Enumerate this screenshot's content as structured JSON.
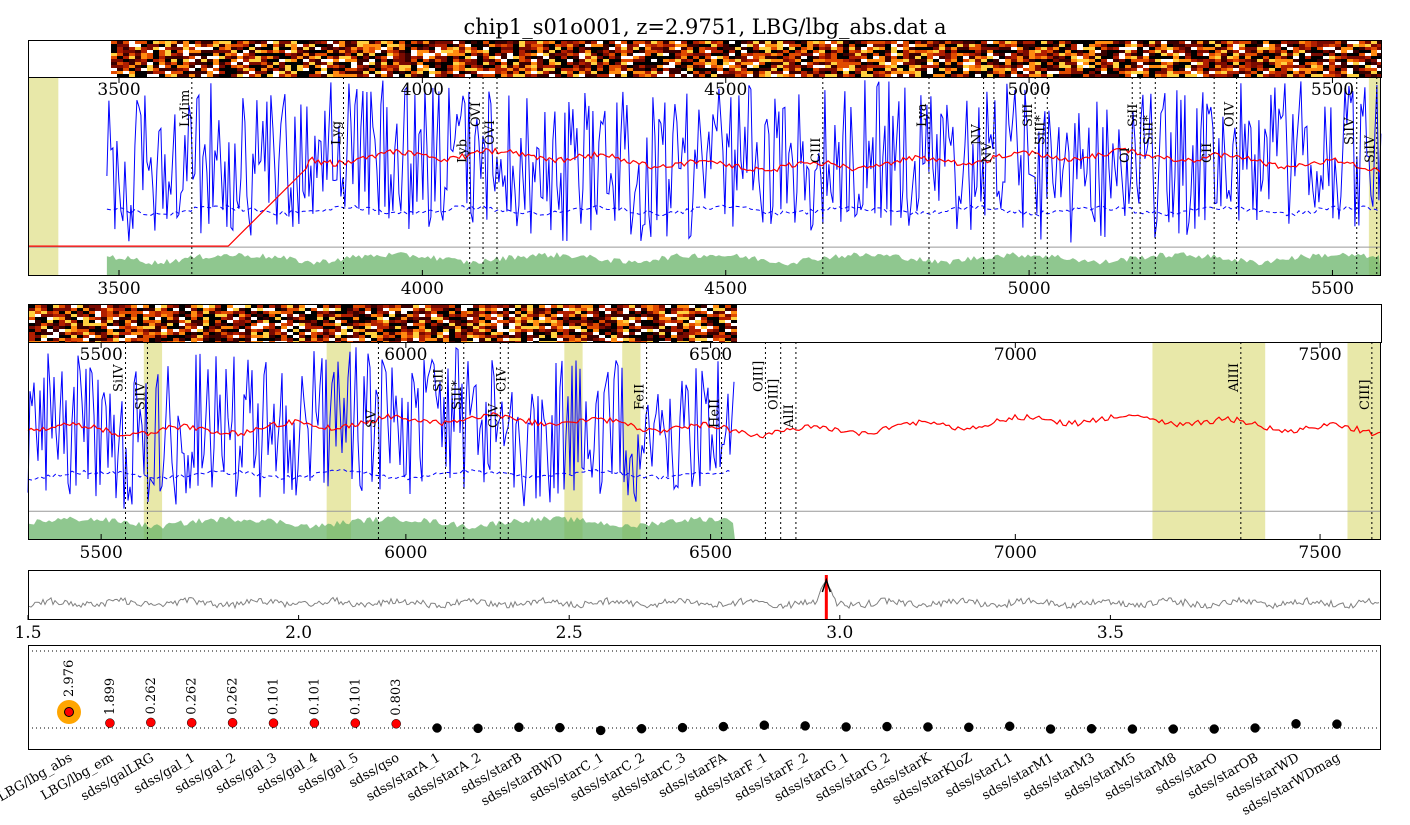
{
  "title": "chip1_s01o001, z=2.9751, LBG/lbg_abs.dat a",
  "colors": {
    "spectrum": "#0000ff",
    "template": "#ff0000",
    "sky": "#6ab46a",
    "mask": "#e6e6a0",
    "zero_line": "#999999",
    "marker": "#ff0000",
    "chi_line": "#808080"
  },
  "chart_data": [
    {
      "id": "spectrum_upper",
      "type": "line",
      "xlim": [
        3350,
        5580
      ],
      "x_ticks": [
        3500,
        4000,
        4500,
        5000,
        5500
      ],
      "series": [
        {
          "values": []
        },
        {
          "values": []
        },
        {
          "values": []
        }
      ],
      "masked_ranges": [
        [
          3350,
          3400
        ],
        [
          5560,
          5580
        ]
      ],
      "line_ids": [
        {
          "name": "LyIim",
          "x": 3620
        },
        {
          "name": "Lyg",
          "x": 3870
        },
        {
          "name": "Lyb",
          "x": 4078
        },
        {
          "name": "OVI",
          "x": 4100
        },
        {
          "name": "OVI",
          "x": 4123
        },
        {
          "name": "CIII",
          "x": 4660
        },
        {
          "name": "Lya",
          "x": 4835
        },
        {
          "name": "NV",
          "x": 4925
        },
        {
          "name": "NV",
          "x": 4942
        },
        {
          "name": "SiII",
          "x": 5010
        },
        {
          "name": "SiII*",
          "x": 5030
        },
        {
          "name": "OI",
          "x": 5170
        },
        {
          "name": "SiII",
          "x": 5183
        },
        {
          "name": "SiII*",
          "x": 5208
        },
        {
          "name": "CII",
          "x": 5305
        },
        {
          "name": "OIV",
          "x": 5342
        },
        {
          "name": "SiIV",
          "x": 5540
        },
        {
          "name": "SiIV",
          "x": 5573
        }
      ]
    },
    {
      "id": "spectrum_lower",
      "type": "line",
      "xlim": [
        5380,
        7600
      ],
      "x_ticks": [
        5500,
        6000,
        6500,
        7000,
        7500
      ],
      "series": [
        {
          "values": []
        },
        {
          "values": []
        },
        {
          "values": []
        }
      ],
      "masked_ranges": [
        [
          5570,
          5600
        ],
        [
          5870,
          5910
        ],
        [
          6260,
          6290
        ],
        [
          6355,
          6385
        ],
        [
          7225,
          7410
        ],
        [
          7545,
          7600
        ]
      ],
      "line_ids": [
        {
          "name": "SiIV",
          "x": 5540
        },
        {
          "name": "SiIV",
          "x": 5576
        },
        {
          "name": "SV",
          "x": 5955
        },
        {
          "name": "SiII",
          "x": 6065
        },
        {
          "name": "SiII*",
          "x": 6095
        },
        {
          "name": "CIV",
          "x": 6155
        },
        {
          "name": "CIV",
          "x": 6168
        },
        {
          "name": "FeII",
          "x": 6395
        },
        {
          "name": "HeII",
          "x": 6518
        },
        {
          "name": "OIII]",
          "x": 6590
        },
        {
          "name": "OIII]",
          "x": 6615
        },
        {
          "name": "AlII",
          "x": 6640
        },
        {
          "name": "AlIII",
          "x": 7370
        },
        {
          "name": "CIII]",
          "x": 7585
        }
      ]
    },
    {
      "id": "xcorr",
      "type": "line",
      "xlim": [
        1.5,
        4.0
      ],
      "x_ticks": [
        "1.5",
        "2.0",
        "2.5",
        "3.0",
        "3.5"
      ],
      "series": [
        {
          "values": []
        }
      ],
      "best_z": 2.9751
    },
    {
      "id": "templates",
      "type": "scatter",
      "categories": [
        "LBG/lbg_abs",
        "LBG/lbg_em",
        "sdss/galLRG",
        "sdss/gal_1",
        "sdss/gal_2",
        "sdss/gal_3",
        "sdss/gal_4",
        "sdss/gal_5",
        "sdss/qso",
        "sdss/starA_1",
        "sdss/starA_2",
        "sdss/starB",
        "sdss/starBWD",
        "sdss/starC_1",
        "sdss/starC_2",
        "sdss/starC_3",
        "sdss/starFA",
        "sdss/starF_1",
        "sdss/starF_2",
        "sdss/starG_1",
        "sdss/starG_2",
        "sdss/starK",
        "sdss/starKloZ",
        "sdss/starL1",
        "sdss/starM1",
        "sdss/starM3",
        "sdss/starM5",
        "sdss/starM8",
        "sdss/starO",
        "sdss/starOB",
        "sdss/starWD",
        "sdss/starWDmag"
      ],
      "display_labels": [
        "LBG/lbg_abs",
        "LBG/lbg_em",
        "sdss/galLRG",
        "sdss/gal_1",
        "sdss/gal_2",
        "sdss/gal_3",
        "sdss/gal_4",
        "sdss/gal_5",
        "sdss/qso",
        "sdss/starA_1",
        "sdss/starA_2",
        "sdss/starB",
        "sdss/starBWD",
        "sdss/starC_1",
        "sdss/starC_2",
        "sdss/starC_3",
        "sdss/starFA",
        "sdss/starF_1",
        "sdss/starF_2",
        "sdss/starG_1",
        "sdss/starG_2",
        "sdss/starK",
        "sdss/starKloZ",
        "sdss/starL1",
        "sdss/starM1",
        "sdss/starM3",
        "sdss/starM5",
        "sdss/starM8",
        "sdss/starO",
        "sdss/starOB",
        "sdss/starWD",
        "sdss/starWDmag"
      ],
      "z_values": [
        "2.976",
        "1.899",
        "0.262",
        "0.262",
        "0.262",
        "0.101",
        "0.101",
        "0.101",
        "0.803"
      ],
      "values": [
        0.34,
        0.14,
        0.16,
        0.15,
        0.15,
        0.14,
        0.14,
        0.14,
        0.12,
        0.0,
        -0.01,
        0.02,
        0.01,
        -0.07,
        -0.02,
        0.01,
        0.04,
        0.08,
        0.06,
        0.03,
        0.04,
        0.03,
        0.02,
        0.05,
        -0.03,
        -0.02,
        -0.03,
        -0.03,
        -0.03,
        0.0,
        0.12,
        0.11
      ],
      "best_index": 0,
      "ylim": [
        -0.8,
        1.6
      ]
    }
  ]
}
